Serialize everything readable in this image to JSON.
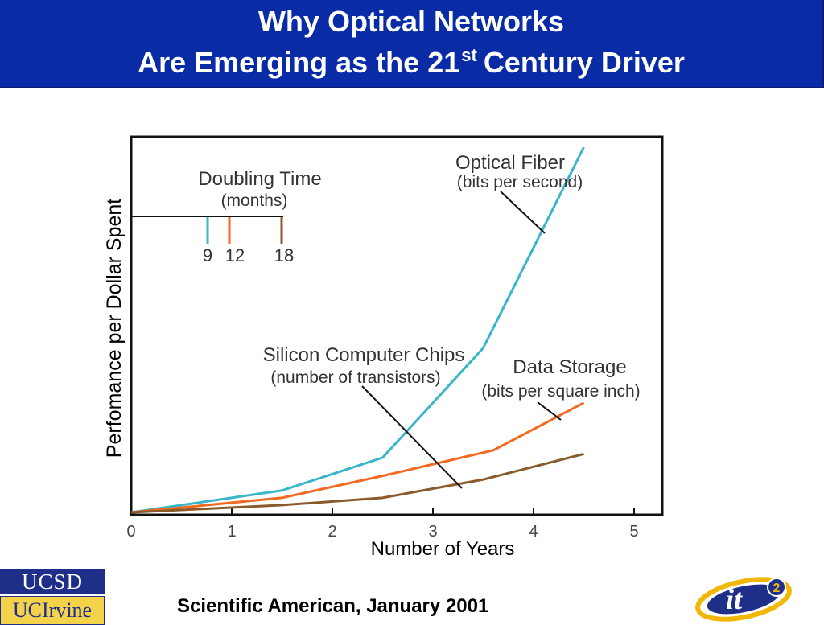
{
  "slide": {
    "title_line1": "Why Optical Networks",
    "title_line2_pre": "Are Emerging as the 21",
    "title_line2_sup": "st",
    "title_line2_post": "Century Driver",
    "citation": "Scientific American, January 2001"
  },
  "logos": {
    "ucsd": "UCSD",
    "uci": "UCIrvine",
    "it": "it",
    "it_sup": "2"
  },
  "colors": {
    "header_bg": "#0a2ba6",
    "optical_fiber": "#3ab5c9",
    "data_storage": "#f26a21",
    "silicon_chips": "#8a5a2b"
  },
  "chart_data": {
    "type": "line",
    "xlabel": "Number of Years",
    "ylabel": "Perfomance per Dollar Spent",
    "xlim": [
      0,
      5
    ],
    "x_ticks": [
      "0",
      "1",
      "2",
      "3",
      "4",
      "5"
    ],
    "series": [
      {
        "name": "Optical Fiber",
        "sub": "(bits per second)",
        "points": [
          [
            0,
            0.0
          ],
          [
            1.5,
            0.06
          ],
          [
            2.5,
            0.15
          ],
          [
            3.5,
            0.45
          ],
          [
            4.5,
            1.0
          ]
        ]
      },
      {
        "name": "Data Storage",
        "sub": "(bits per square inch)",
        "points": [
          [
            0,
            0.0
          ],
          [
            1.5,
            0.04
          ],
          [
            2.5,
            0.1
          ],
          [
            3.6,
            0.17
          ],
          [
            4.5,
            0.3
          ]
        ]
      },
      {
        "name": "Silicon Computer Chips",
        "sub": "(number of transistors)",
        "points": [
          [
            0,
            0.0
          ],
          [
            1.5,
            0.02
          ],
          [
            2.5,
            0.04
          ],
          [
            3.5,
            0.09
          ],
          [
            4.5,
            0.16
          ]
        ]
      }
    ],
    "doubling_time": {
      "title": "Doubling Time",
      "sub": "(months)",
      "items": [
        {
          "label": "9",
          "series": "Optical Fiber"
        },
        {
          "label": "12",
          "series": "Data Storage"
        },
        {
          "label": "18",
          "series": "Silicon Computer Chips"
        }
      ]
    }
  }
}
